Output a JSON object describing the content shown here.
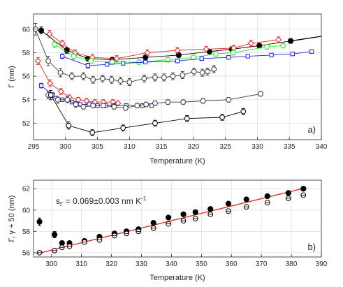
{
  "colors": {
    "black": "#000000",
    "gray": "#3a3a3a",
    "red": "#e8241e",
    "green": "#2ee82e",
    "blue": "#1f1fe6",
    "fit": "#e8241e",
    "grid": "#dcdcdc"
  },
  "chart_data": [
    {
      "type": "scatter",
      "panel": "a)",
      "title": "",
      "xlabel": "Temperature (K)",
      "ylabel": "Γ (nm)",
      "xlim": [
        295,
        340
      ],
      "ylim": [
        50.6,
        61.3
      ],
      "xticks": [
        295,
        300,
        305,
        310,
        315,
        320,
        325,
        330,
        335,
        340
      ],
      "yticks": [
        52,
        54,
        56,
        58,
        60
      ],
      "grid": true,
      "series": [
        {
          "id": "a-black-filled",
          "color": "black",
          "marker": "filled-circle",
          "line": true,
          "x": [
            296.2,
            300.2,
            303.5,
            307.3,
            312.5,
            317.7,
            322.5,
            326.0,
            330.3,
            335.2
          ],
          "y": [
            59.9,
            58.2,
            57.5,
            57.4,
            57.6,
            57.8,
            58.1,
            58.3,
            58.6,
            59.0
          ],
          "err": [
            0.3,
            0.25,
            0.2,
            0.2,
            0.2,
            0.2,
            0.2,
            0.2,
            0.2,
            0.2
          ]
        },
        {
          "id": "a-black-fit",
          "color": "black",
          "marker": "none",
          "line": true,
          "x": [
            335.2,
            340.0
          ],
          "y": [
            59.0,
            59.4
          ],
          "err": []
        },
        {
          "id": "a-red-upper",
          "color": "red",
          "marker": "open-diamond",
          "line": true,
          "x": [
            297.5,
            299.5,
            301.5,
            304.2,
            308.0,
            312.8,
            317.5,
            322.0,
            326.3,
            329.0,
            333.3
          ],
          "y": [
            59.6,
            58.8,
            58.0,
            57.6,
            57.5,
            58.0,
            58.2,
            58.3,
            58.4,
            58.8,
            59.1
          ],
          "err": [
            0.3,
            0.25,
            0.25,
            0.25,
            0.25,
            0.25,
            0.25,
            0.25,
            0.25,
            0.25,
            0.25
          ]
        },
        {
          "id": "a-green",
          "color": "green",
          "marker": "open-circle",
          "line": true,
          "x": [
            298.3,
            301.3,
            304.0,
            307.3,
            311.5,
            316.0,
            320.0,
            323.5,
            326.2,
            331.5,
            334.0
          ],
          "y": [
            58.7,
            57.7,
            57.3,
            57.2,
            57.2,
            57.4,
            57.6,
            57.9,
            58.0,
            58.5,
            58.6
          ],
          "err": [
            0.25,
            0.25,
            0.2,
            0.2,
            0.2,
            0.2,
            0.2,
            0.2,
            0.2,
            0.2,
            0.2
          ]
        },
        {
          "id": "a-blue-upper",
          "color": "blue",
          "marker": "open-square",
          "line": true,
          "x": [
            299.5,
            303.5,
            306.5,
            309.0,
            312.5,
            317.5,
            321.3,
            325.5,
            328.5,
            332.2,
            335.5,
            338.5
          ],
          "y": [
            57.7,
            56.9,
            57.0,
            57.1,
            57.2,
            57.3,
            57.5,
            57.6,
            57.7,
            57.8,
            57.9,
            58.1
          ],
          "err": [
            0.2,
            0.2,
            0.15,
            0.15,
            0.15,
            0.15,
            0.15,
            0.15,
            0.15,
            0.15,
            0.15,
            0.15
          ]
        },
        {
          "id": "a-gray-upper",
          "color": "gray",
          "marker": "open-circle",
          "line": true,
          "x": [
            295.3,
            297.3,
            299.2,
            301.0,
            302.8,
            304.3,
            305.8,
            307.2,
            308.6,
            310.0,
            312.3,
            314.0,
            315.4,
            316.8,
            318.3,
            320.1,
            321.4,
            322.2,
            323.2
          ],
          "y": [
            60.0,
            57.3,
            56.3,
            56.0,
            56.0,
            55.7,
            55.8,
            55.7,
            55.6,
            55.5,
            55.8,
            55.9,
            55.9,
            56.0,
            56.1,
            56.4,
            56.3,
            56.4,
            56.6
          ],
          "err": [
            0.5,
            0.4,
            0.35,
            0.3,
            0.3,
            0.3,
            0.3,
            0.3,
            0.3,
            0.3,
            0.3,
            0.3,
            0.3,
            0.3,
            0.3,
            0.3,
            0.3,
            0.3,
            0.3
          ]
        },
        {
          "id": "a-red-lower",
          "color": "red",
          "marker": "open-diamond",
          "line": true,
          "x": [
            295.7,
            297.6,
            299.3,
            300.6,
            302.0,
            303.3,
            304.6,
            305.9,
            307.4,
            308.2
          ],
          "y": [
            57.3,
            55.4,
            54.7,
            54.2,
            54.0,
            53.9,
            53.8,
            53.8,
            53.8,
            53.7
          ],
          "err": [
            0.3,
            0.3,
            0.25,
            0.2,
            0.2,
            0.2,
            0.2,
            0.2,
            0.2,
            0.2
          ]
        },
        {
          "id": "a-blue-lower",
          "color": "blue",
          "marker": "open-square",
          "line": true,
          "x": [
            296.2,
            298.0,
            299.5,
            301.0,
            302.3,
            303.7,
            305.0,
            306.3,
            307.5,
            309.5,
            312.0,
            313.5
          ],
          "y": [
            55.2,
            54.4,
            54.0,
            53.8,
            53.6,
            53.6,
            53.5,
            53.5,
            53.5,
            53.5,
            53.5,
            53.5
          ],
          "err": [
            0.2,
            0.2,
            0.15,
            0.15,
            0.15,
            0.15,
            0.15,
            0.15,
            0.15,
            0.15,
            0.15,
            0.15
          ]
        },
        {
          "id": "a-gray-mid",
          "color": "gray",
          "marker": "open-circle",
          "line": true,
          "x": [
            297.3,
            298.8,
            300.3,
            301.6,
            302.8,
            304.3,
            305.9,
            307.6,
            309.4,
            311.2,
            312.6,
            314.0,
            316.0,
            318.4,
            321.5,
            325.5,
            330.5
          ],
          "y": [
            54.4,
            54.0,
            54.0,
            53.6,
            53.4,
            53.5,
            53.5,
            53.4,
            53.3,
            53.5,
            53.6,
            53.7,
            53.8,
            53.8,
            53.9,
            54.0,
            54.5
          ],
          "err": [
            0.3,
            0.3,
            0.25,
            0.25,
            0.2,
            0.2,
            0.2,
            0.2,
            0.2,
            0.2,
            0.2,
            0.2,
            0.2,
            0.2,
            0.2,
            0.2,
            0.2
          ]
        },
        {
          "id": "a-black-lower",
          "color": "black",
          "marker": "open-circle",
          "line": true,
          "x": [
            297.7,
            300.5,
            304.2,
            309.0,
            314.0,
            319.0,
            324.5,
            327.8
          ],
          "y": [
            54.4,
            51.8,
            51.2,
            51.6,
            52.0,
            52.4,
            52.5,
            53.0
          ],
          "err": [
            0.4,
            0.3,
            0.25,
            0.25,
            0.25,
            0.25,
            0.25,
            0.25
          ]
        }
      ]
    },
    {
      "type": "scatter",
      "panel": "b)",
      "title": "",
      "xlabel": "Temperature (K)",
      "ylabel": "Γ, γ + 50 (nm)",
      "annotation": "s",
      "annotation_sub": "Γ",
      "annotation_rest": " = 0.069±0.003 nm K",
      "annotation_sup": "-1",
      "xlim": [
        294,
        390
      ],
      "ylim": [
        55.6,
        62.8
      ],
      "xticks": [
        300,
        310,
        320,
        330,
        340,
        350,
        360,
        370,
        380,
        390
      ],
      "yticks": [
        56,
        58,
        60,
        62
      ],
      "grid": true,
      "series": [
        {
          "id": "b-fit",
          "color": "fit",
          "marker": "none",
          "line": true,
          "x": [
            295.0,
            385.0
          ],
          "y": [
            55.9,
            62.1
          ],
          "err": []
        },
        {
          "id": "b-gamma",
          "color": "black",
          "marker": "filled-circle",
          "line": false,
          "x": [
            296.0,
            301.0,
            303.5,
            306.0,
            311.0,
            316.0,
            321.0,
            325.0,
            329.0,
            334.0,
            339.0,
            344.0,
            348.0,
            353.0,
            359.0,
            365.0,
            372.0,
            379.0,
            384.0
          ],
          "y": [
            58.9,
            57.7,
            56.9,
            56.9,
            57.1,
            57.5,
            57.8,
            58.0,
            58.2,
            58.8,
            59.3,
            59.6,
            59.8,
            60.1,
            60.6,
            61.0,
            61.3,
            61.6,
            62.0
          ],
          "err": [
            0.35,
            0.3,
            0.2,
            0.15,
            0.12,
            0.12,
            0.12,
            0.12,
            0.12,
            0.12,
            0.12,
            0.12,
            0.12,
            0.12,
            0.12,
            0.12,
            0.12,
            0.12,
            0.12
          ]
        },
        {
          "id": "b-gamma-small",
          "color": "black",
          "marker": "open-circle",
          "line": false,
          "x": [
            296.0,
            301.0,
            303.5,
            306.0,
            311.0,
            316.0,
            321.0,
            325.0,
            329.0,
            334.0,
            339.0,
            344.0,
            348.0,
            353.0,
            359.0,
            365.0,
            372.0,
            379.0,
            384.0
          ],
          "y": [
            56.0,
            56.2,
            56.5,
            56.6,
            57.0,
            57.2,
            57.6,
            57.8,
            58.0,
            58.3,
            58.7,
            59.0,
            59.2,
            59.6,
            59.9,
            60.3,
            60.7,
            61.1,
            61.4
          ],
          "err": [
            0.08,
            0.08,
            0.08,
            0.08,
            0.08,
            0.08,
            0.08,
            0.08,
            0.08,
            0.08,
            0.08,
            0.08,
            0.08,
            0.08,
            0.08,
            0.08,
            0.08,
            0.08,
            0.08
          ]
        }
      ]
    }
  ]
}
